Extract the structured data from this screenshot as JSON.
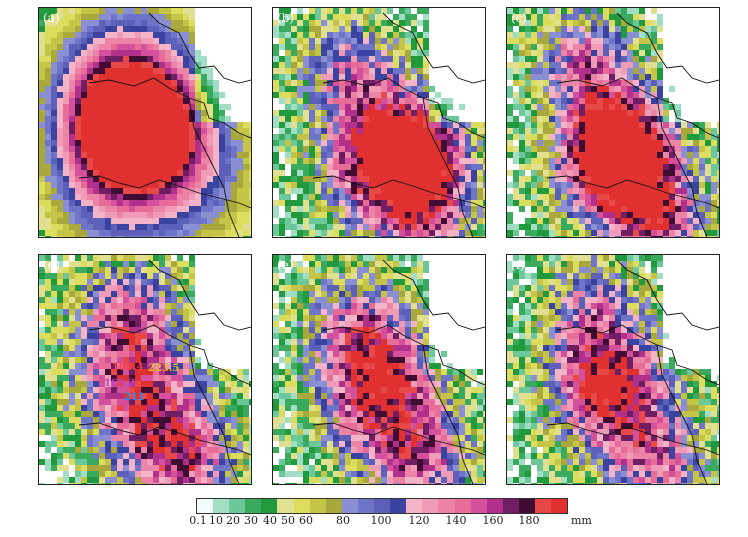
{
  "panels": [
    {
      "label": "(a)"
    },
    {
      "label": "(b)"
    },
    {
      "label": "(c)"
    },
    {
      "label": "(d)"
    },
    {
      "label": "(e)"
    },
    {
      "label": "(f)"
    }
  ],
  "colorbar": {
    "colors": [
      "#f4fbfb",
      "#a2ddc5",
      "#6cc79a",
      "#3aaa5e",
      "#219a3d",
      "#e0e090",
      "#dcdc5e",
      "#c4c446",
      "#a8a83c",
      "#8a8fd4",
      "#6e74c8",
      "#5c60b8",
      "#3a44a0",
      "#f4b4c8",
      "#f09cb8",
      "#ec84a8",
      "#e86c98",
      "#d4509c",
      "#b0308c",
      "#701e64",
      "#400c34",
      "#e84848",
      "#e03030"
    ],
    "ticks": [
      "0.1",
      "10",
      "20",
      "30",
      "40",
      "50",
      "60",
      "80",
      "100",
      "120",
      "140",
      "160",
      "180"
    ],
    "unit": "mm"
  },
  "annotations": [
    "180.4",
    "223.5",
    "169.2",
    "211"
  ]
}
